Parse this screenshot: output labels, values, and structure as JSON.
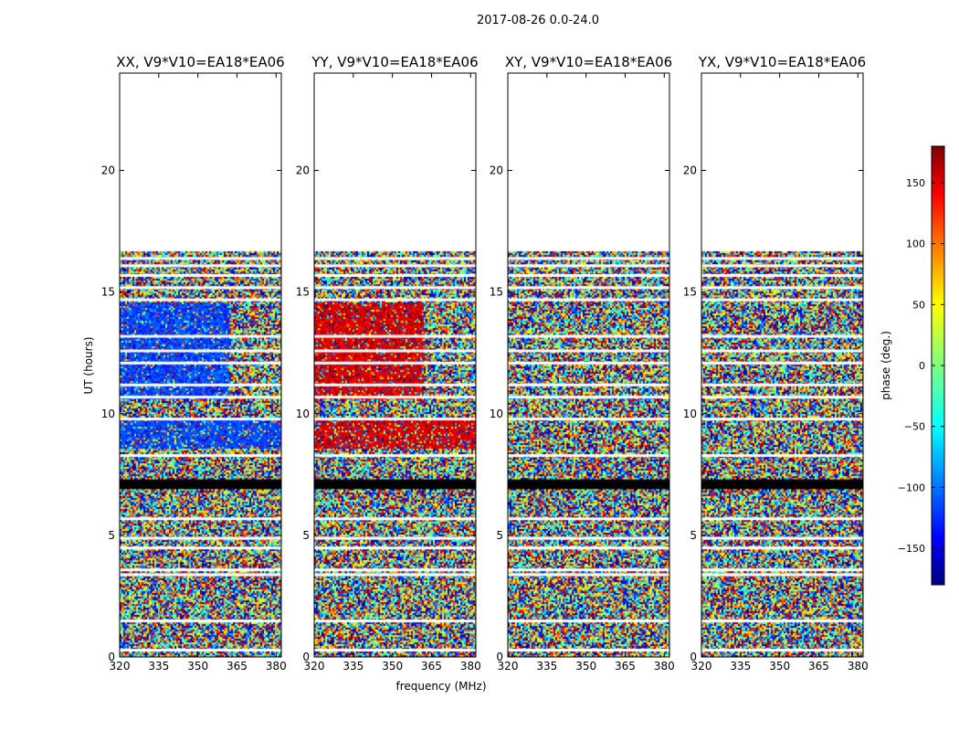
{
  "figure": {
    "suptitle": "2017-08-26 0.0-24.0",
    "xlabel": "frequency (MHz)",
    "ylabel": "UT (hours)"
  },
  "chart_data": {
    "type": "heatmap",
    "x_range": [
      320,
      382
    ],
    "y_range": [
      0,
      24
    ],
    "xticks": [
      320,
      335,
      350,
      365,
      380
    ],
    "yticks": [
      0,
      5,
      10,
      15,
      20
    ],
    "colormap": "jet",
    "panels": [
      {
        "title": "XX, V9*V10=EA18*EA06",
        "mean_phase": -110
      },
      {
        "title": "YY, V9*V10=EA18*EA06",
        "mean_phase": 150
      },
      {
        "title": "XY, V9*V10=EA18*EA06",
        "mean_phase": null
      },
      {
        "title": "YX, V9*V10=EA18*EA06",
        "mean_phase": null
      }
    ],
    "data_time_range": [
      0,
      16.7
    ],
    "flagged_black_hours": [
      6.9,
      7.3
    ],
    "coherent_band_hours": [
      10.6,
      14.6
    ],
    "coherent_band_freq": [
      320,
      362
    ],
    "blank_gap_hours": [
      0.3,
      1.5,
      3.4,
      3.6,
      4.5,
      4.9,
      5.7,
      8.3,
      9.8,
      10.7,
      11.2,
      12.1,
      12.6,
      13.2,
      14.7,
      15.2,
      15.7,
      16.1,
      16.4
    ],
    "colorbar": {
      "label": "phase (deg.)",
      "range": [
        -180,
        180
      ],
      "ticks": [
        -150,
        -100,
        -50,
        0,
        50,
        100,
        150
      ],
      "tick_labels": [
        "−150",
        "−100",
        "−50",
        "0",
        "50",
        "100",
        "150"
      ]
    }
  }
}
